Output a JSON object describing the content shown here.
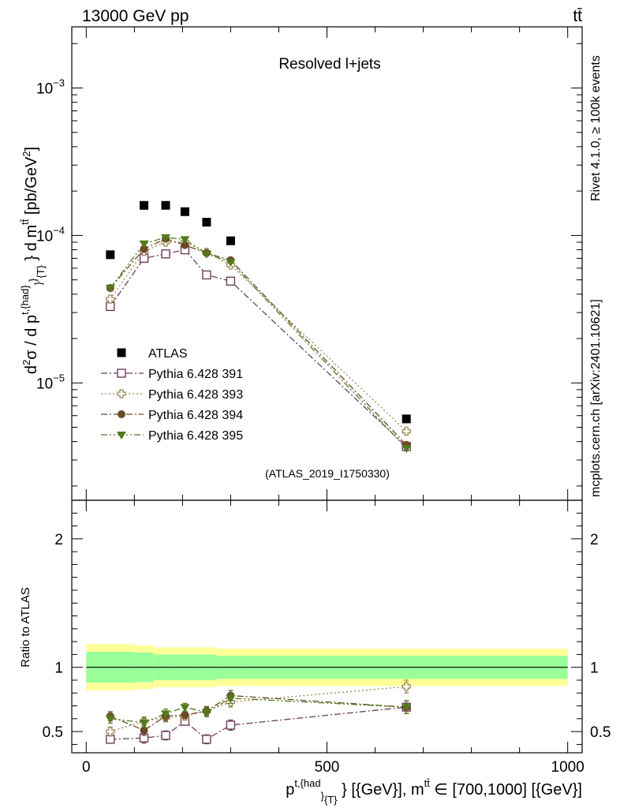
{
  "header": {
    "left": "13000 GeV pp",
    "right": "tt̄"
  },
  "side_text": {
    "rivet": "Rivet 4.1.0, ≥ 100k events",
    "mcplots": "mcplots.cern.ch [arXiv:2401.10621]"
  },
  "chart_data": [
    {
      "type": "scatter",
      "title": "Resolved l+jets",
      "analysis_id": "(ATLAS_2019_I1750330)",
      "ylabel": "d²σ / d p^{t,{had}}_{T} d m^{tt̄} [pb/GeV²]",
      "yscale": "log",
      "ylim": [
        1.6e-06,
        0.0026
      ],
      "xlim": [
        -30,
        1030
      ],
      "y_ticks": [
        {
          "value": 1e-05,
          "label": "10",
          "exp": "−5"
        },
        {
          "value": 0.0001,
          "label": "10",
          "exp": "−4"
        },
        {
          "value": 0.001,
          "label": "10",
          "exp": "−3"
        }
      ],
      "x": [
        50,
        120,
        165,
        205,
        250,
        300,
        665
      ],
      "series": [
        {
          "name": "ATLAS",
          "color": "#000000",
          "marker": "square-filled",
          "dash": "none",
          "values": [
            7.4e-05,
            0.00016,
            0.00016,
            0.000145,
            0.000123,
            9.2e-05,
            5.7e-06
          ]
        },
        {
          "name": "Pythia 6.428 391",
          "color": "#6d3f5b",
          "marker": "square-open",
          "dash": "8,3,2,3",
          "values": [
            3.3e-05,
            7e-05,
            7.5e-05,
            8e-05,
            5.4e-05,
            4.9e-05,
            3.7e-06
          ]
        },
        {
          "name": "Pythia 6.428 393",
          "color": "#9b8b55",
          "marker": "cross-open",
          "dash": "2,3",
          "values": [
            3.7e-05,
            7.8e-05,
            9e-05,
            9e-05,
            7.7e-05,
            6.3e-05,
            4.7e-06
          ]
        },
        {
          "name": "Pythia 6.428 394",
          "color": "#6b4a26",
          "marker": "circle-filled",
          "dash": "8,3,2,3",
          "values": [
            4.4e-05,
            8.1e-05,
            9.5e-05,
            8.6e-05,
            7.6e-05,
            6.8e-05,
            3.8e-06
          ]
        },
        {
          "name": "Pythia 6.428 395",
          "color": "#537a1e",
          "marker": "triangle-down-filled",
          "dash": "8,3,2,3,2,3",
          "values": [
            4.4e-05,
            8.8e-05,
            9.7e-05,
            9.4e-05,
            7.5e-05,
            6.6e-05,
            3.6e-06
          ]
        }
      ]
    },
    {
      "type": "scatter",
      "ylabel": "Ratio to ATLAS",
      "xlabel": "p^{t,{had}}_{T} [{GeV}], m^{tt̄} ∈ [700,1000] [{GeV}]",
      "xlim": [
        -30,
        1030
      ],
      "ylim": [
        0.335,
        2.3
      ],
      "y_ticks": [
        0.5,
        1,
        2
      ],
      "y_tick_labels": [
        "0.5",
        "1",
        "2"
      ],
      "x_ticks": [
        0,
        500,
        1000
      ],
      "x_tick_labels": [
        "0",
        "500",
        "1000"
      ],
      "bands": {
        "bin_edges": [
          0,
          100,
          140,
          180,
          230,
          270,
          330,
          1000
        ],
        "green": [
          0.12,
          0.115,
          0.1,
          0.1,
          0.1,
          0.09,
          0.09
        ],
        "yellow": [
          0.18,
          0.17,
          0.155,
          0.155,
          0.155,
          0.145,
          0.145
        ]
      },
      "series": [
        {
          "name": "Pythia 6.428 391",
          "values": [
            0.44,
            0.45,
            0.47,
            0.58,
            0.44,
            0.55,
            0.69
          ],
          "errors": [
            0.03,
            0.04,
            0.035,
            0.03,
            0.035,
            0.04,
            0.05
          ]
        },
        {
          "name": "Pythia 6.428 393",
          "values": [
            0.5,
            0.58,
            0.61,
            0.62,
            0.66,
            0.73,
            0.85
          ],
          "errors": [
            0.035,
            0.035,
            0.035,
            0.03,
            0.03,
            0.04,
            0.05
          ]
        },
        {
          "name": "Pythia 6.428 394",
          "values": [
            0.62,
            0.51,
            0.62,
            0.63,
            0.66,
            0.78,
            0.69
          ],
          "errors": [
            0.035,
            0.04,
            0.035,
            0.03,
            0.035,
            0.04,
            0.05
          ]
        },
        {
          "name": "Pythia 6.428 395",
          "values": [
            0.6,
            0.57,
            0.64,
            0.69,
            0.65,
            0.76,
            0.69
          ],
          "errors": [
            0.035,
            0.035,
            0.035,
            0.03,
            0.035,
            0.04,
            0.05
          ]
        }
      ]
    }
  ]
}
